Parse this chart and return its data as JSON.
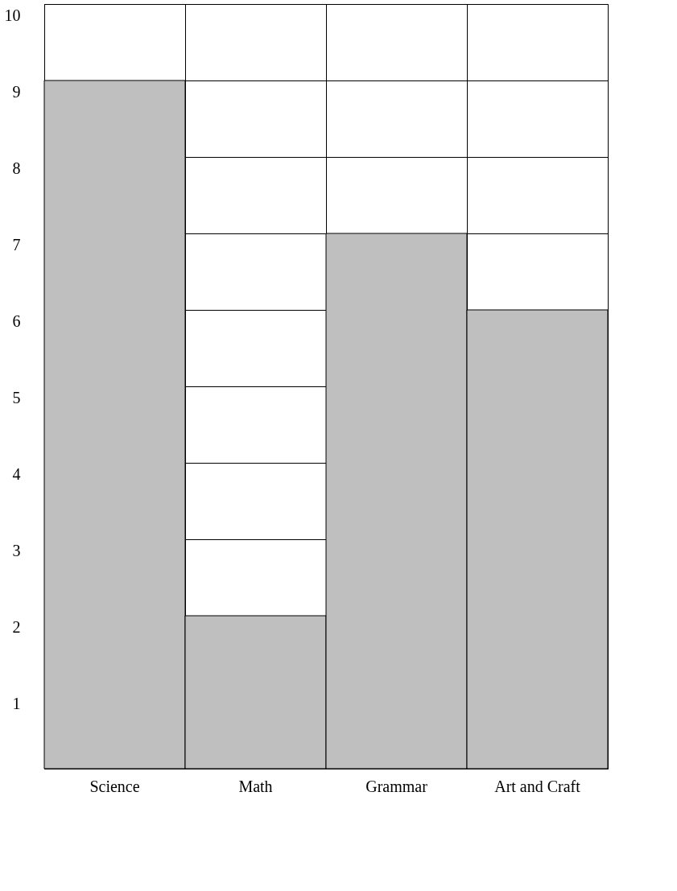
{
  "chart_data": {
    "type": "bar",
    "categories": [
      "Science",
      "Math",
      "Grammar",
      "Art and Craft"
    ],
    "series": [
      {
        "color": "#bfbfbf",
        "values": [
          9,
          2,
          7,
          6
        ]
      }
    ],
    "ylim": [
      0,
      10
    ],
    "yticks": [
      1,
      2,
      3,
      4,
      5,
      6,
      7,
      8,
      9,
      10
    ],
    "grid": true
  }
}
